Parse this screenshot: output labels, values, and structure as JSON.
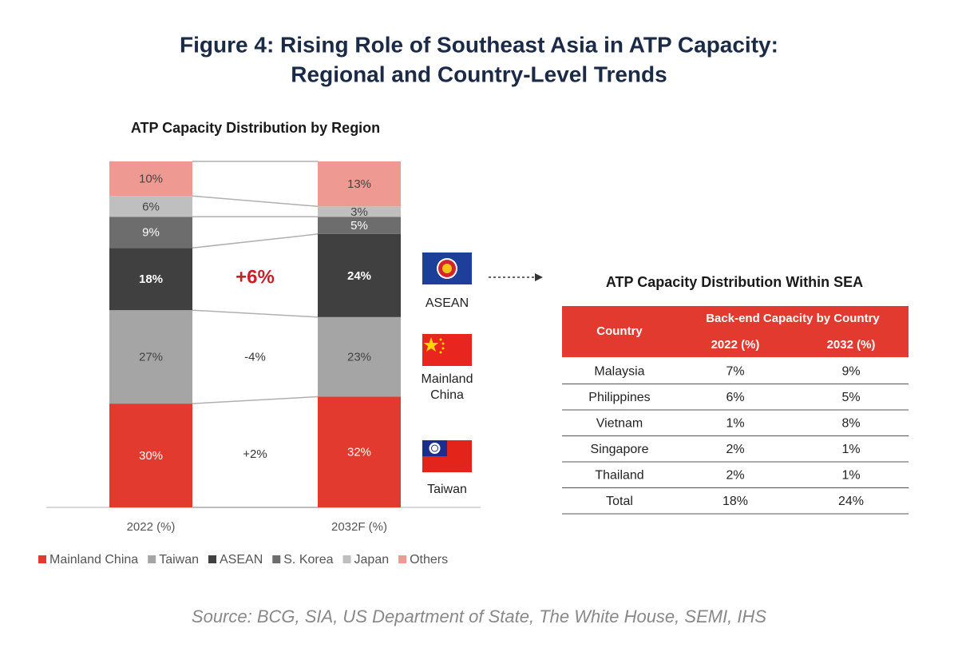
{
  "title": [
    "Figure 4: Rising Role of Southeast Asia in ATP Capacity:",
    "Regional and Country-Level Trends"
  ],
  "chart_data": {
    "type": "stacked_bar",
    "title": "ATP Capacity Distribution by Region",
    "categories": [
      "2022 (%)",
      "2032F (%)"
    ],
    "ylim": [
      0,
      100
    ],
    "series": [
      {
        "name": "Mainland China",
        "color": "#e23a2f",
        "values": [
          30,
          32
        ],
        "value_labels": [
          "30%",
          "32%"
        ]
      },
      {
        "name": "Taiwan",
        "color": "#a5a5a5",
        "values": [
          27,
          23
        ],
        "value_labels": [
          "27%",
          "23%"
        ]
      },
      {
        "name": "ASEAN",
        "color": "#404040",
        "values": [
          18,
          24
        ],
        "value_labels": [
          "18%",
          "24%"
        ]
      },
      {
        "name": "S. Korea",
        "color": "#6d6d6d",
        "values": [
          9,
          5
        ],
        "value_labels": [
          "9%",
          "5%"
        ]
      },
      {
        "name": "Japan",
        "color": "#bfbfbf",
        "values": [
          6,
          3
        ],
        "value_labels": [
          "6%",
          "3%"
        ]
      },
      {
        "name": "Others",
        "color": "#ee9a93",
        "values": [
          10,
          13
        ],
        "value_labels": [
          "10%",
          "13%"
        ]
      }
    ],
    "changes": [
      "+2%",
      "-4%",
      "+6%"
    ]
  },
  "flags": [
    "ASEAN",
    "Mainland China",
    "Taiwan"
  ],
  "table": {
    "title": "ATP Capacity Distribution Within SEA",
    "header": [
      "Country",
      "Back-end Capacity by Country",
      "2022 (%)",
      "2032 (%)"
    ],
    "rows": [
      [
        "Malaysia",
        "7%",
        "9%"
      ],
      [
        "Philippines",
        "6%",
        "5%"
      ],
      [
        "Vietnam",
        "1%",
        "8%"
      ],
      [
        "Singapore",
        "2%",
        "1%"
      ],
      [
        "Thailand",
        "2%",
        "1%"
      ],
      [
        "Total",
        "18%",
        "24%"
      ]
    ]
  },
  "source": "Source: BCG, SIA, US Department of State, The White House, SEMI, IHS"
}
